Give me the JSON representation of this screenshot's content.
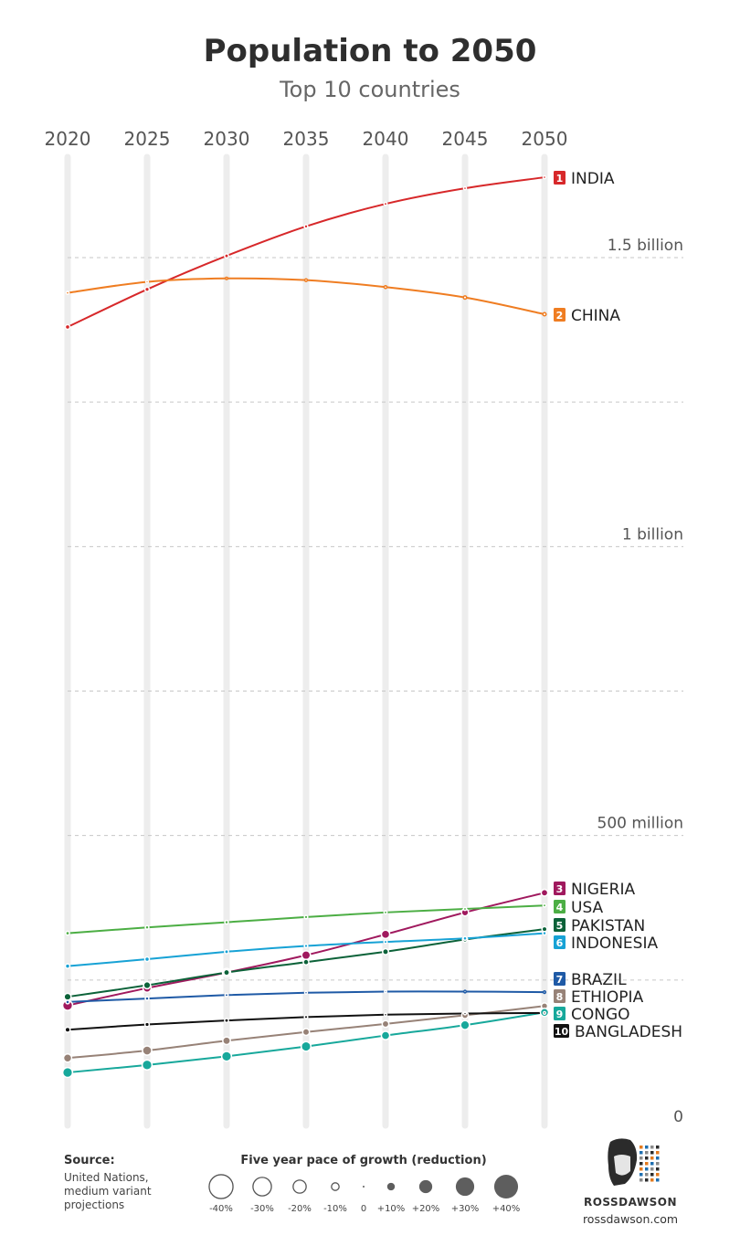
{
  "chart_data": {
    "type": "line",
    "title": "Population to 2050",
    "subtitle": "Top 10 countries",
    "x": [
      2020,
      2025,
      2030,
      2035,
      2040,
      2045,
      2050
    ],
    "y_tick_labels": [
      {
        "value": 1500,
        "label": "1.5 billion"
      },
      {
        "value": 1000,
        "label": "1 billion"
      },
      {
        "value": 500,
        "label": "500 million"
      },
      {
        "value": 0,
        "label": "0"
      }
    ],
    "ylim": [
      0,
      1750
    ],
    "y_unit": "millions",
    "gridlines": [
      250,
      500,
      750,
      1000,
      1250,
      1500
    ],
    "series": [
      {
        "rank": "1",
        "name": "INDIA",
        "color": "#d7282a",
        "values": [
          1380,
          1445,
          1503,
          1554,
          1593,
          1620,
          1639
        ]
      },
      {
        "rank": "2",
        "name": "CHINA",
        "color": "#ef7d22",
        "values": [
          1439,
          1458,
          1464,
          1461,
          1449,
          1431,
          1402
        ]
      },
      {
        "rank": "3",
        "name": "NIGERIA",
        "color": "#a0195e",
        "values": [
          206,
          236,
          263,
          293,
          329,
          367,
          401
        ]
      },
      {
        "rank": "4",
        "name": "USA",
        "color": "#4cae44",
        "values": [
          331,
          341,
          350,
          359,
          367,
          373,
          379
        ]
      },
      {
        "rank": "5",
        "name": "PAKISTAN",
        "color": "#0c6239",
        "values": [
          221,
          241,
          263,
          281,
          299,
          320,
          338
        ]
      },
      {
        "rank": "6",
        "name": "INDONESIA",
        "color": "#17a2d5",
        "values": [
          274,
          286,
          299,
          309,
          316,
          322,
          331
        ]
      },
      {
        "rank": "7",
        "name": "BRAZIL",
        "color": "#1f5aa6",
        "values": [
          212,
          218,
          224,
          228,
          230,
          230,
          229
        ]
      },
      {
        "rank": "8",
        "name": "ETHIOPIA",
        "color": "#978277",
        "values": [
          115,
          128,
          145,
          160,
          174,
          189,
          205
        ]
      },
      {
        "rank": "9",
        "name": "CONGO",
        "color": "#17a89b",
        "values": [
          90,
          103,
          118,
          135,
          154,
          172,
          194
        ]
      },
      {
        "rank": "10",
        "name": "BANGLADESH",
        "color": "#111111",
        "values": [
          164,
          173,
          180,
          186,
          190,
          192,
          193
        ]
      }
    ],
    "grid": true
  },
  "footer": {
    "source_heading": "Source:",
    "source_lines": [
      "United Nations,",
      "medium variant",
      "projections"
    ],
    "legend_title": "Five year pace of growth (reduction)",
    "legend_items": [
      {
        "label": "-40%",
        "pct": -40
      },
      {
        "label": "-30%",
        "pct": -30
      },
      {
        "label": "-20%",
        "pct": -20
      },
      {
        "label": "-10%",
        "pct": -10
      },
      {
        "label": "0",
        "pct": 0
      },
      {
        "label": "+10%",
        "pct": 10
      },
      {
        "label": "+20%",
        "pct": 20
      },
      {
        "label": "+30%",
        "pct": 30
      },
      {
        "label": "+40%",
        "pct": 40
      }
    ],
    "brand_name": "ROSSDAWSON",
    "brand_url": "rossdawson.com"
  }
}
